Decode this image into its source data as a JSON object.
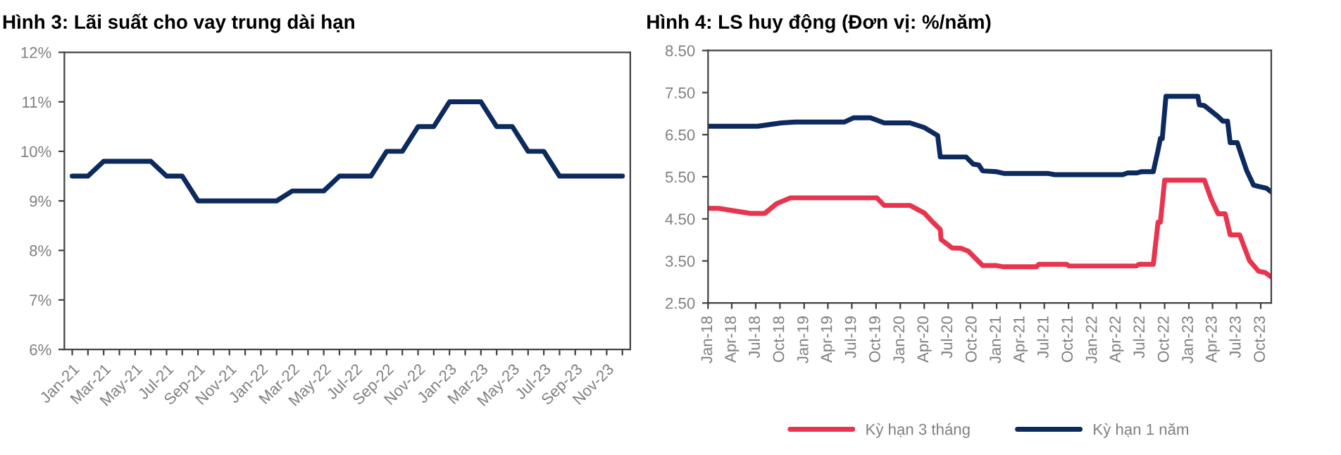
{
  "chart_data": [
    {
      "type": "line",
      "title": "Hình 3: Lãi suất cho vay trung dài hạn",
      "categories": [
        "Jan-21",
        null,
        "Mar-21",
        null,
        "May-21",
        null,
        "Jul-21",
        null,
        "Sep-21",
        null,
        "Nov-21",
        null,
        "Jan-22",
        null,
        "Mar-22",
        null,
        "May-22",
        null,
        "Jul-22",
        null,
        "Sep-22",
        null,
        "Nov-22",
        null,
        "Jan-23",
        null,
        "Mar-23",
        null,
        "May-23",
        null,
        "Jul-23",
        null,
        "Sep-23",
        null,
        "Nov-23",
        null
      ],
      "series": [
        {
          "color": "#0d2a5e",
          "values": [
            9.5,
            9.5,
            9.8,
            9.8,
            9.8,
            9.8,
            9.5,
            9.5,
            9.0,
            9.0,
            9.0,
            9.0,
            9.0,
            9.0,
            9.2,
            9.2,
            9.2,
            9.5,
            9.5,
            9.5,
            10,
            10,
            10.5,
            10.5,
            11,
            11,
            11,
            10.5,
            10.5,
            10,
            10,
            9.5,
            9.5,
            9.5,
            9.5,
            9.5
          ]
        }
      ],
      "ylim": [
        6,
        12
      ],
      "yticks": [
        {
          "value": 6,
          "label": "6%"
        },
        {
          "value": 7,
          "label": "7%"
        },
        {
          "value": 8,
          "label": "8%"
        },
        {
          "value": 9,
          "label": "9%"
        },
        {
          "value": 10,
          "label": "10%"
        },
        {
          "value": 11,
          "label": "11%"
        },
        {
          "value": 12,
          "label": "12%"
        }
      ],
      "grid": false,
      "legend": false,
      "marker": "none",
      "line_style": "solid"
    },
    {
      "type": "line",
      "title": "Hình 4: LS huy động (Đơn vị: %/năm)",
      "series": [
        {
          "name": "Kỳ hạn 3 tháng",
          "color": "#e8344e",
          "x": [
            "2018-01-01",
            "2018-02-09",
            "2018-06-11",
            "2018-08-04",
            "2018-09-18",
            "2018-11-10",
            "2019-10-04",
            "2019-11-01",
            "2020-02-07",
            "2020-04-01",
            "2020-05-04",
            "2020-06-01",
            "2020-06-04",
            "2020-07-16",
            "2020-08-19",
            "2020-09-16",
            "2020-11-09",
            "2021-01-01",
            "2021-01-28",
            "2021-06-01",
            "2021-06-10",
            "2021-09-24",
            "2021-10-03",
            "2022-06-16",
            "2022-06-25",
            "2022-08-19",
            "2022-09-06",
            "2022-09-15",
            "2022-10-01",
            "2023-03-01",
            "2023-03-28",
            "2023-04-22",
            "2023-05-19",
            "2023-06-07",
            "2023-07-13",
            "2023-08-19",
            "2023-09-22",
            "2023-10-19",
            "2023-11-10"
          ],
          "values": [
            4.75,
            4.75,
            4.63,
            4.63,
            4.86,
            5.0,
            5.0,
            4.82,
            4.82,
            4.64,
            4.42,
            4.25,
            4.01,
            3.81,
            3.8,
            3.73,
            3.39,
            3.39,
            3.36,
            3.36,
            3.42,
            3.42,
            3.38,
            3.38,
            3.42,
            3.42,
            4.42,
            4.42,
            5.42,
            5.42,
            4.95,
            4.62,
            4.62,
            4.12,
            4.12,
            3.51,
            3.26,
            3.22,
            3.12
          ]
        },
        {
          "name": "Kỳ hạn 1 năm",
          "color": "#0d2a5e",
          "x": [
            "2018-01-01",
            "2018-07-08",
            "2018-10-06",
            "2018-11-28",
            "2019-06-02",
            "2019-07-07",
            "2019-09-10",
            "2019-11-01",
            "2020-02-07",
            "2020-04-01",
            "2020-05-22",
            "2020-06-01",
            "2020-09-07",
            "2020-10-04",
            "2020-10-25",
            "2020-11-09",
            "2021-01-01",
            "2021-01-28",
            "2021-07-13",
            "2021-08-10",
            "2022-04-25",
            "2022-05-13",
            "2022-06-16",
            "2022-07-04",
            "2022-08-19",
            "2022-09-06",
            "2022-09-15",
            "2022-09-22",
            "2022-10-06",
            "2023-02-04",
            "2023-02-10",
            "2023-03-01",
            "2023-04-22",
            "2023-05-10",
            "2023-05-28",
            "2023-06-07",
            "2023-07-04",
            "2023-07-22",
            "2023-08-09",
            "2023-09-04",
            "2023-09-22",
            "2023-10-22",
            "2023-11-10"
          ],
          "values": [
            6.7,
            6.7,
            6.78,
            6.8,
            6.8,
            6.9,
            6.9,
            6.78,
            6.78,
            6.67,
            6.48,
            5.97,
            5.97,
            5.8,
            5.78,
            5.64,
            5.62,
            5.58,
            5.58,
            5.55,
            5.55,
            5.59,
            5.59,
            5.62,
            5.62,
            6.13,
            6.41,
            6.41,
            7.41,
            7.41,
            7.21,
            7.19,
            6.93,
            6.82,
            6.82,
            6.31,
            6.31,
            5.97,
            5.64,
            5.3,
            5.27,
            5.23,
            5.14
          ]
        }
      ],
      "xlim": [
        "2018-01-01",
        "2023-11-10"
      ],
      "xticks": [
        {
          "value": "2018-01-01",
          "label": "Jan-18"
        },
        {
          "value": "2018-04-01",
          "label": "Apr-18"
        },
        {
          "value": "2018-07-01",
          "label": "Jul-18"
        },
        {
          "value": "2018-10-01",
          "label": "Oct-18"
        },
        {
          "value": "2019-01-01",
          "label": "Jan-19"
        },
        {
          "value": "2019-04-01",
          "label": "Apr-19"
        },
        {
          "value": "2019-07-01",
          "label": "Jul-19"
        },
        {
          "value": "2019-10-01",
          "label": "Oct-19"
        },
        {
          "value": "2020-01-01",
          "label": "Jan-20"
        },
        {
          "value": "2020-04-01",
          "label": "Apr-20"
        },
        {
          "value": "2020-07-01",
          "label": "Jul-20"
        },
        {
          "value": "2020-10-01",
          "label": "Oct-20"
        },
        {
          "value": "2021-01-01",
          "label": "Jan-21"
        },
        {
          "value": "2021-04-01",
          "label": "Apr-21"
        },
        {
          "value": "2021-07-01",
          "label": "Jul-21"
        },
        {
          "value": "2021-10-01",
          "label": "Oct-21"
        },
        {
          "value": "2022-01-01",
          "label": "Jan-22"
        },
        {
          "value": "2022-04-01",
          "label": "Apr-22"
        },
        {
          "value": "2022-07-01",
          "label": "Jul-22"
        },
        {
          "value": "2022-10-01",
          "label": "Oct-22"
        },
        {
          "value": "2023-01-01",
          "label": "Jan-23"
        },
        {
          "value": "2023-04-01",
          "label": "Apr-23"
        },
        {
          "value": "2023-07-01",
          "label": "Jul-23"
        },
        {
          "value": "2023-10-01",
          "label": "Oct-23"
        }
      ],
      "ylim": [
        2.5,
        8.5
      ],
      "yticks": [
        {
          "value": 2.5,
          "label": "2.50"
        },
        {
          "value": 3.5,
          "label": "3.50"
        },
        {
          "value": 4.5,
          "label": "4.50"
        },
        {
          "value": 5.5,
          "label": "5.50"
        },
        {
          "value": 6.5,
          "label": "6.50"
        },
        {
          "value": 7.5,
          "label": "7.50"
        },
        {
          "value": 8.5,
          "label": "8.50"
        }
      ],
      "grid": false,
      "legend": "bottom",
      "marker": "none",
      "line_style": "solid"
    }
  ]
}
